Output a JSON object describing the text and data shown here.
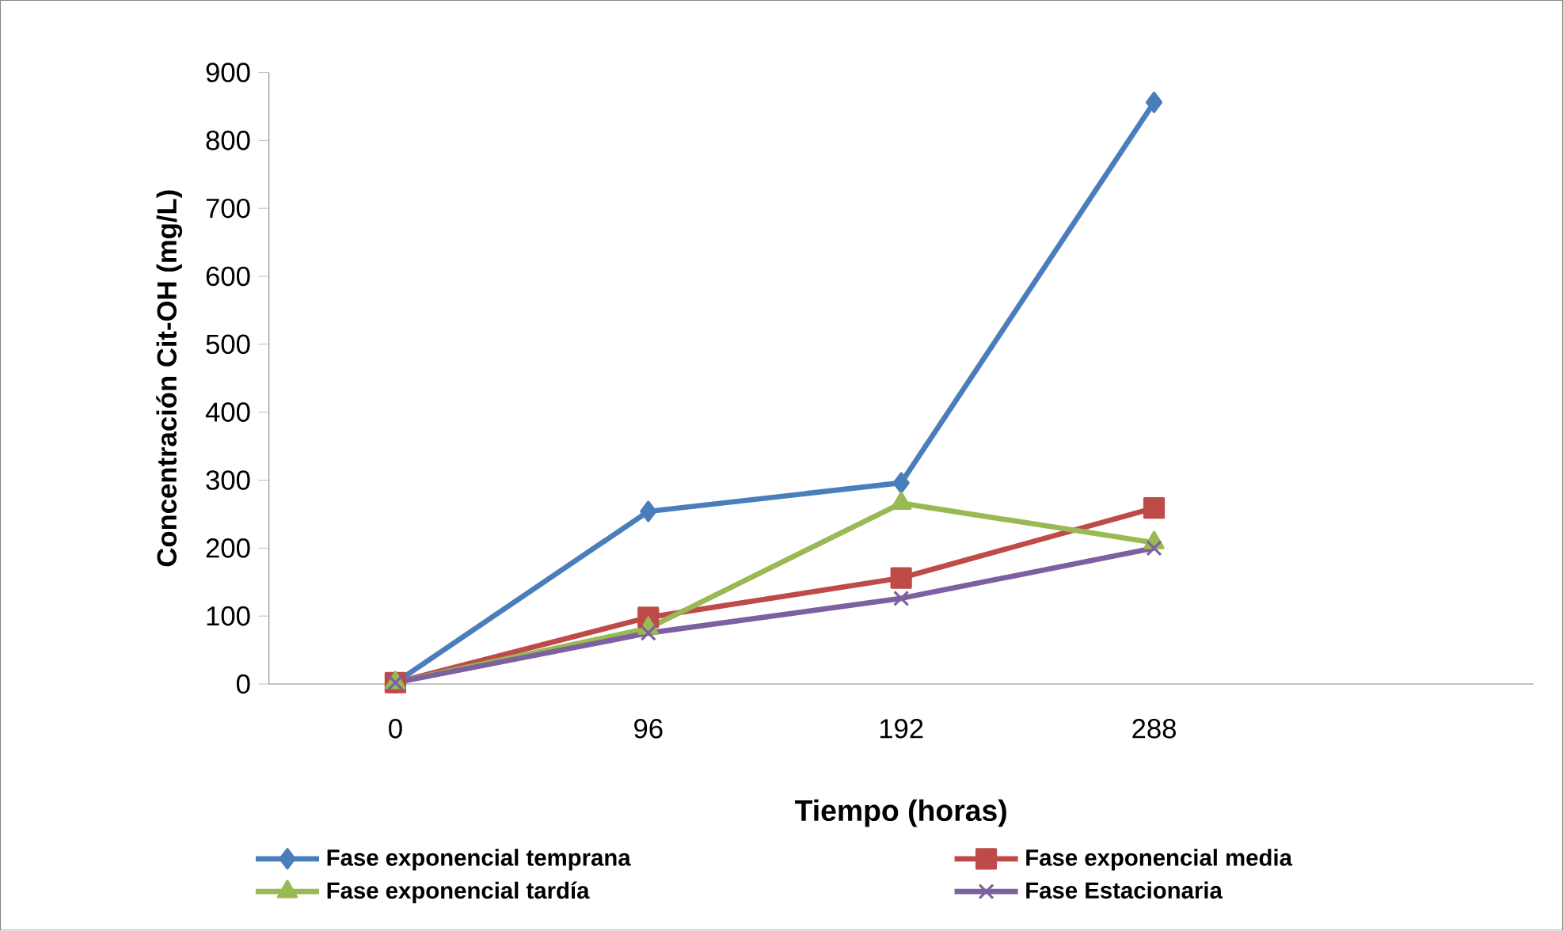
{
  "chart_data": {
    "type": "line",
    "xlabel": "Tiempo (horas)",
    "ylabel": "Concentración Cit-OH (mg/L)",
    "categories": [
      "0",
      "96",
      "192",
      "288",
      null
    ],
    "ylim": [
      0,
      900
    ],
    "yticks": [
      0,
      100,
      200,
      300,
      400,
      500,
      600,
      700,
      800,
      900
    ],
    "grid": false,
    "legend": "bottom",
    "line_style": "solid",
    "series": [
      {
        "name": "Fase exponencial temprana",
        "color": "#4a7ebb",
        "marker": "diamond",
        "values": [
          2,
          254,
          296,
          856,
          null
        ]
      },
      {
        "name": "Fase exponencial media",
        "color": "#be4b48",
        "marker": "square",
        "values": [
          2,
          98,
          156,
          259,
          null
        ]
      },
      {
        "name": "Fase exponencial tardía",
        "color": "#98b954",
        "marker": "triangle",
        "values": [
          2,
          82,
          266,
          208,
          null
        ]
      },
      {
        "name": "Fase Estacionaria",
        "color": "#7d60a0",
        "marker": "cross",
        "values": [
          2,
          75,
          126,
          200,
          null
        ]
      }
    ]
  }
}
